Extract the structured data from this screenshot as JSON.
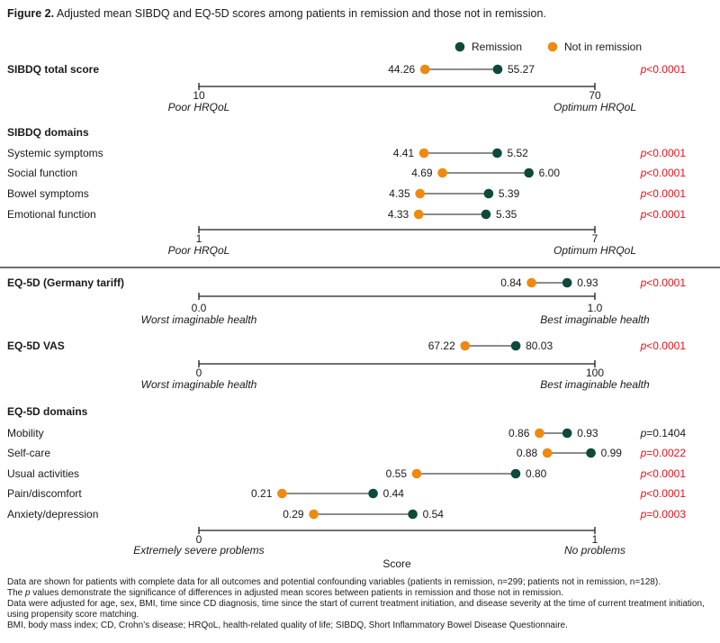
{
  "title": {
    "figure_label": "Figure 2.",
    "text": "Adjusted mean SIBDQ and EQ-5D scores among patients in remission and those not in remission."
  },
  "colors": {
    "remission": "#0e4a3c",
    "not_in_remission": "#ee8a11",
    "pvalue_significant": "#e8111a",
    "pvalue_ns": "#1a1a1a"
  },
  "legend": {
    "remission": "Remission",
    "not_in_remission": "Not in remission",
    "placement": "top-right"
  },
  "x_axis_title": "Score",
  "chart_data": {
    "type": "dumbbell",
    "legend_placement": "top-right",
    "grid": false,
    "panels": [
      {
        "heading": "SIBDQ total score",
        "xlim": [
          10,
          70
        ],
        "tick_labels": [
          "10",
          "70"
        ],
        "anchor_labels": [
          "Poor HRQoL",
          "Optimum HRQoL"
        ],
        "rows": [
          {
            "label": "",
            "not_in_remission": 44.26,
            "remission": 55.27,
            "p_prefix": "p",
            "p_text": "<0.0001",
            "significant": true
          }
        ]
      },
      {
        "heading": "SIBDQ domains",
        "xlim": [
          1,
          7
        ],
        "tick_labels": [
          "1",
          "7"
        ],
        "anchor_labels": [
          "Poor HRQoL",
          "Optimum HRQoL"
        ],
        "rows": [
          {
            "label": "Systemic symptoms",
            "not_in_remission": 4.41,
            "remission": 5.52,
            "p_prefix": "p",
            "p_text": "<0.0001",
            "significant": true
          },
          {
            "label": "Social function",
            "not_in_remission": 4.69,
            "remission": 6.0,
            "p_prefix": "p",
            "p_text": "<0.0001",
            "significant": true
          },
          {
            "label": "Bowel symptoms",
            "not_in_remission": 4.35,
            "remission": 5.39,
            "p_prefix": "p",
            "p_text": "<0.0001",
            "significant": true
          },
          {
            "label": "Emotional function",
            "not_in_remission": 4.33,
            "remission": 5.35,
            "p_prefix": "p",
            "p_text": "<0.0001",
            "significant": true
          }
        ]
      },
      {
        "heading": "EQ-5D (Germany tariff)",
        "xlim": [
          0,
          1
        ],
        "tick_labels": [
          "0.0",
          "1.0"
        ],
        "anchor_labels": [
          "Worst imaginable health",
          "Best imaginable health"
        ],
        "rows": [
          {
            "label": "",
            "not_in_remission": 0.84,
            "remission": 0.93,
            "p_prefix": "p",
            "p_text": "<0.0001",
            "significant": true
          }
        ]
      },
      {
        "heading": "EQ-5D VAS",
        "xlim": [
          0,
          100
        ],
        "tick_labels": [
          "0",
          "100"
        ],
        "anchor_labels": [
          "Worst imaginable health",
          "Best imaginable health"
        ],
        "rows": [
          {
            "label": "",
            "not_in_remission": 67.22,
            "remission": 80.03,
            "p_prefix": "p",
            "p_text": "<0.0001",
            "significant": true
          }
        ]
      },
      {
        "heading": "EQ-5D domains",
        "xlim": [
          0,
          1
        ],
        "tick_labels": [
          "0",
          "1"
        ],
        "anchor_labels": [
          "Extremely severe problems",
          "No problems"
        ],
        "rows": [
          {
            "label": "Mobility",
            "not_in_remission": 0.86,
            "remission": 0.93,
            "p_prefix": "p",
            "p_text": "=0.1404",
            "significant": false
          },
          {
            "label": "Self-care",
            "not_in_remission": 0.88,
            "remission": 0.99,
            "p_prefix": "p",
            "p_text": "=0.0022",
            "significant": true
          },
          {
            "label": "Usual activities",
            "not_in_remission": 0.55,
            "remission": 0.8,
            "p_prefix": "p",
            "p_text": "<0.0001",
            "significant": true
          },
          {
            "label": "Pain/discomfort",
            "not_in_remission": 0.21,
            "remission": 0.44,
            "p_prefix": "p",
            "p_text": "<0.0001",
            "significant": true
          },
          {
            "label": "Anxiety/depression",
            "not_in_remission": 0.29,
            "remission": 0.54,
            "p_prefix": "p",
            "p_text": "=0.0003",
            "significant": true
          }
        ]
      }
    ]
  },
  "footnotes": {
    "line1": "Data are shown for patients with complete data for all outcomes and potential confounding variables (patients in remission, n=299; patients not in remission, n=128).",
    "line2_before": "The ",
    "line2_italic": "p",
    "line2_after": " values demonstrate the significance of differences in adjusted mean scores between patients in remission and those not in remission.",
    "line3": "Data were adjusted for age, sex, BMI, time since CD diagnosis, time since the start of current treatment initiation, and disease severity at the time of current treatment initiation, using propensity score matching.",
    "line4": "BMI, body mass index; CD, Crohn’s disease; HRQoL, health-related quality of life; SIBDQ, Short Inflammatory Bowel Disease Questionnaire."
  }
}
